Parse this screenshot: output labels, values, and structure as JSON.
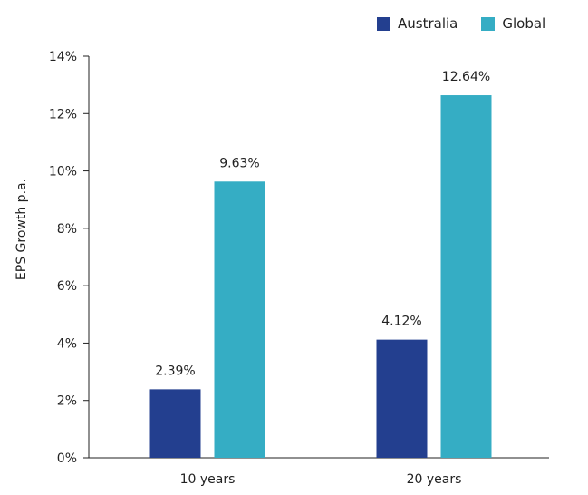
{
  "chart_data": {
    "type": "bar",
    "title": "",
    "xlabel": "",
    "ylabel": "EPS Growth p.a.",
    "categories": [
      "10 years",
      "20 years"
    ],
    "series": [
      {
        "name": "Australia",
        "values": [
          2.39,
          4.12
        ],
        "labels": [
          "2.39%",
          "4.12%"
        ],
        "color": "#233f8f"
      },
      {
        "name": "Global",
        "values": [
          9.63,
          12.64
        ],
        "labels": [
          "9.63%",
          "12.64%"
        ],
        "color": "#35adc4"
      }
    ],
    "ylim": [
      0,
      14
    ],
    "yticks": [
      0,
      2,
      4,
      6,
      8,
      10,
      12,
      14
    ],
    "ytick_labels": [
      "0%",
      "2%",
      "4%",
      "6%",
      "8%",
      "10%",
      "12%",
      "14%"
    ],
    "grid": false,
    "legend_position": "top-right"
  }
}
